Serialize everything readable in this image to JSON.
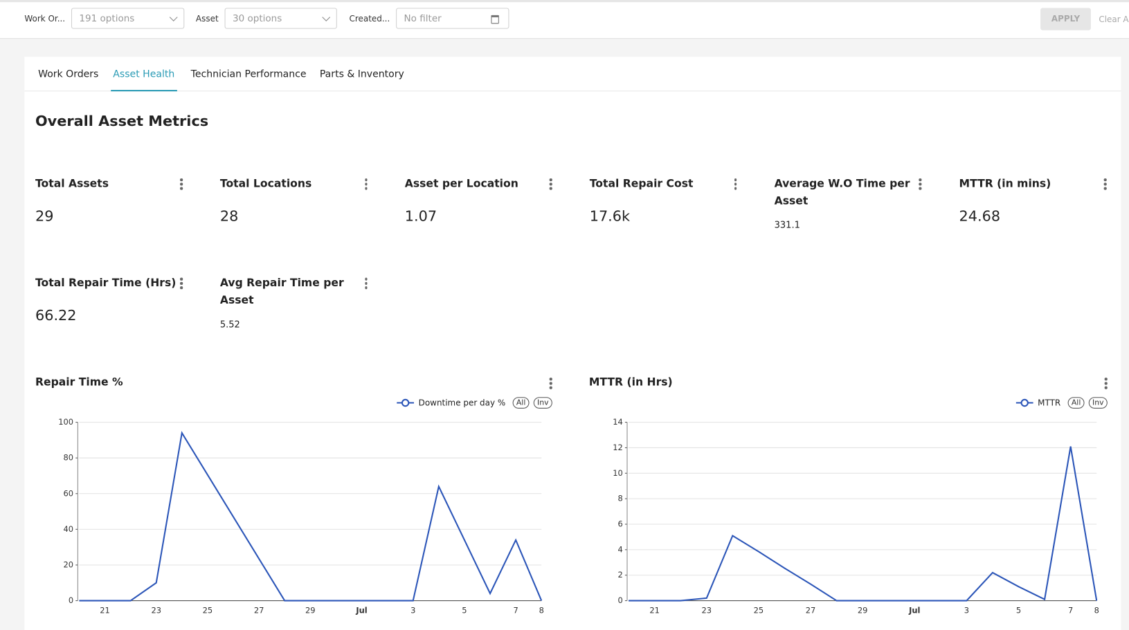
{
  "filters": [
    {
      "label": "Work Or...",
      "placeholder": "191 options"
    },
    {
      "label": "Asset",
      "placeholder": "30 options"
    },
    {
      "label": "Created...",
      "placeholder": "No filter"
    }
  ],
  "actions": {
    "apply": "APPLY",
    "clear": "Clear All"
  },
  "tabs": [
    "Work Orders",
    "Asset Health",
    "Technician Performance",
    "Parts & Inventory"
  ],
  "active_tab": 1,
  "section_title": "Overall Asset Metrics",
  "metrics": [
    {
      "label": "Total Assets",
      "value": "29"
    },
    {
      "label": "Total Locations",
      "value": "28"
    },
    {
      "label": "Asset per Location",
      "value": "1.07"
    },
    {
      "label": "Total Repair Cost",
      "value": "17.6k"
    },
    {
      "label": "Average W.O Time per Asset",
      "value": "331.1"
    },
    {
      "label": "MTTR (in mins)",
      "value": "24.68"
    },
    {
      "label": "Total Repair Time (Hrs)",
      "value": "66.22"
    },
    {
      "label": "Avg Repair Time per Asset",
      "value": "5.52"
    }
  ],
  "legend_buttons": [
    "All",
    "Inv"
  ],
  "chart_data": [
    {
      "type": "line",
      "title": "Repair Time %",
      "categories": [
        null,
        "21",
        null,
        "23",
        null,
        "25",
        null,
        "27",
        null,
        "29",
        null,
        "Jul",
        null,
        "3",
        null,
        "5",
        null,
        "7",
        "8"
      ],
      "series": [
        {
          "name": "Downtime per day %",
          "color": "#2b55b8",
          "values": [
            0,
            0,
            0,
            10,
            94,
            70.5,
            47,
            23.5,
            0,
            0,
            0,
            0,
            0,
            0,
            64,
            34,
            4,
            34,
            0
          ]
        }
      ],
      "ylim": [
        0,
        100
      ],
      "yticks": [
        0,
        20,
        40,
        60,
        80,
        100
      ],
      "grid": true
    },
    {
      "type": "line",
      "title": "MTTR (in Hrs)",
      "categories": [
        null,
        "21",
        null,
        "23",
        null,
        "25",
        null,
        "27",
        null,
        "29",
        null,
        "Jul",
        null,
        "3",
        null,
        "5",
        null,
        "7",
        "8"
      ],
      "series": [
        {
          "name": "MTTR",
          "color": "#2b55b8",
          "values": [
            0,
            0,
            0,
            0.2,
            5.1,
            3.85,
            2.55,
            1.3,
            0,
            0,
            0,
            0,
            0,
            0,
            2.2,
            1.1,
            0.1,
            12.1,
            0
          ]
        }
      ],
      "ylim": [
        0,
        14
      ],
      "yticks": [
        0,
        2,
        4,
        6,
        8,
        10,
        12,
        14
      ],
      "grid": true
    }
  ]
}
